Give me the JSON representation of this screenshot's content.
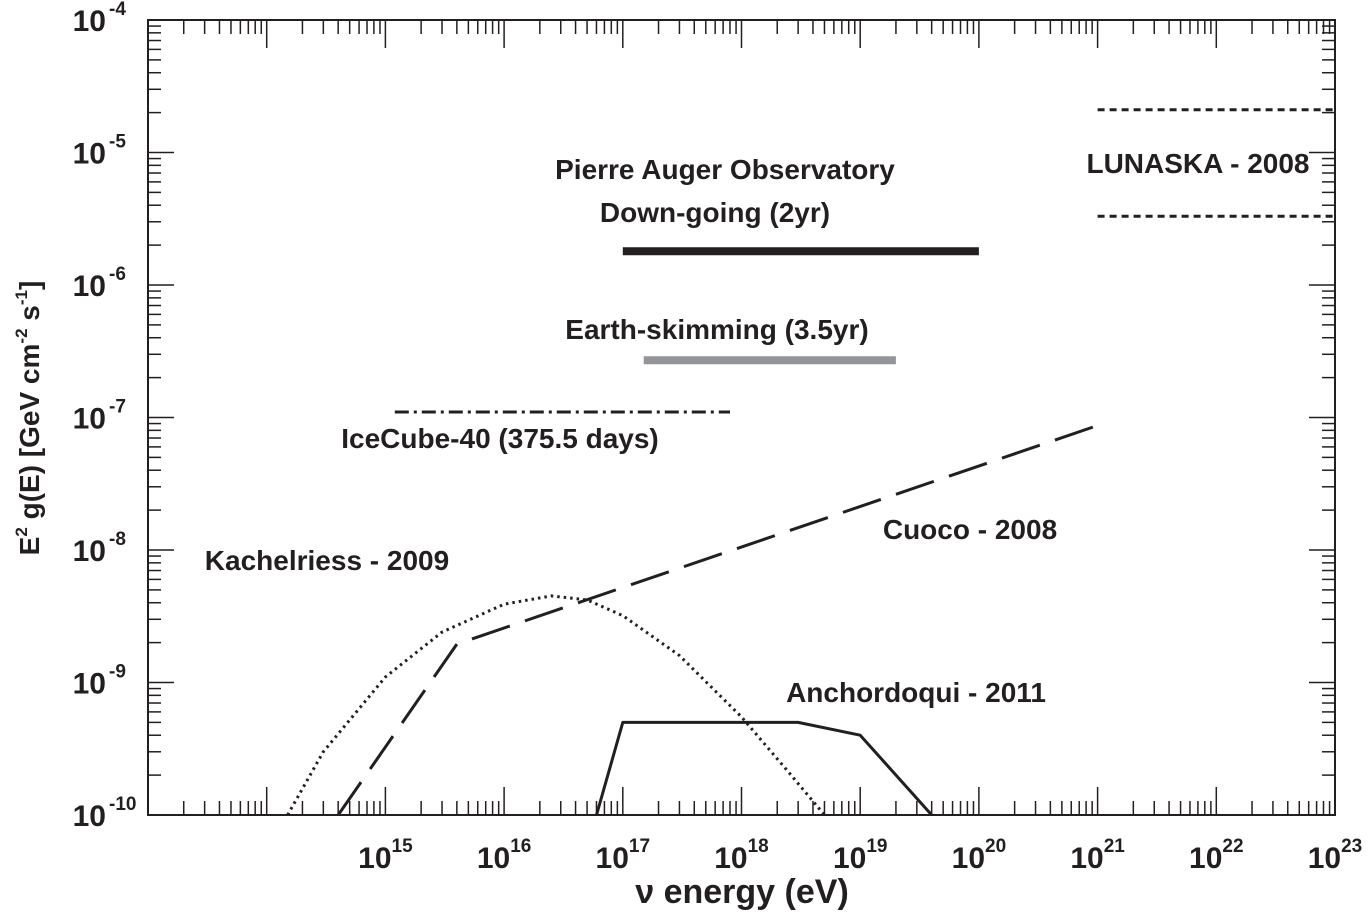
{
  "chart_data": {
    "type": "line",
    "xscale": "log",
    "yscale": "log",
    "xlim": [
      10000000000000.0,
      1e+23
    ],
    "ylim": [
      1e-10,
      0.0001
    ],
    "xlabel": "ν energy (eV)",
    "ylabel": {
      "base": "E",
      "base_sup": "2",
      "mid": " g(E) [GeV cm",
      "mid_sup": "-2",
      "tail": " s",
      "tail_sup": "-1",
      "end": "]"
    },
    "x_ticks": [
      {
        "exp": "15",
        "value": 1000000000000000.0
      },
      {
        "exp": "16",
        "value": 1e+16
      },
      {
        "exp": "17",
        "value": 1e+17
      },
      {
        "exp": "18",
        "value": 1e+18
      },
      {
        "exp": "19",
        "value": 1e+19
      },
      {
        "exp": "20",
        "value": 1e+20
      },
      {
        "exp": "21",
        "value": 1e+21
      },
      {
        "exp": "22",
        "value": 1e+22
      },
      {
        "exp": "23",
        "value": 1e+23
      }
    ],
    "y_ticks": [
      {
        "exp": "-10",
        "value": 1e-10
      },
      {
        "exp": "-9",
        "value": 1e-09
      },
      {
        "exp": "-8",
        "value": 1e-08
      },
      {
        "exp": "-7",
        "value": 1e-07
      },
      {
        "exp": "-6",
        "value": 1e-06
      },
      {
        "exp": "-5",
        "value": 1e-05
      },
      {
        "exp": "-4",
        "value": 0.0001
      }
    ],
    "tick_base": "10",
    "series": [
      {
        "key": "auger-down",
        "style": "solid-thick",
        "color": "#231f20",
        "points": [
          [
            1e+17,
            1.8e-06
          ],
          [
            1e+20,
            1.8e-06
          ]
        ],
        "label_lines": [
          "Pierre Auger Observatory",
          "Down-going (2yr)"
        ]
      },
      {
        "key": "auger-earth",
        "style": "solid-thick",
        "color": "#939598",
        "points": [
          [
            1.5e+17,
            2.7e-07
          ],
          [
            2e+19,
            2.7e-07
          ]
        ],
        "label_lines": [
          "Earth-skimming (3.5yr)"
        ]
      },
      {
        "key": "icecube",
        "style": "dashdot",
        "color": "#231f20",
        "points": [
          [
            1200000000000000.0,
            1.1e-07
          ],
          [
            8e+17,
            1.1e-07
          ]
        ],
        "label_lines": [
          "IceCube-40 (375.5 days)"
        ]
      },
      {
        "key": "lunaska-upper",
        "style": "dotted-short",
        "color": "#231f20",
        "points": [
          [
            1e+21,
            2.1e-05
          ],
          [
            1e+23,
            2.1e-05
          ]
        ],
        "label_lines": [
          "LUNASKA - 2008"
        ]
      },
      {
        "key": "lunaska-lower",
        "style": "dotted-short",
        "color": "#231f20",
        "points": [
          [
            1e+21,
            3.3e-06
          ],
          [
            1e+23,
            3.3e-06
          ]
        ],
        "label_lines": []
      },
      {
        "key": "cuoco",
        "style": "longdash",
        "color": "#231f20",
        "points": [
          [
            400000000000000.0,
            1e-10
          ],
          [
            4000000000000000.0,
            1.95e-09
          ],
          [
            1e+21,
            8.7e-08
          ]
        ],
        "label_lines": [
          "Cuoco - 2008"
        ]
      },
      {
        "key": "kachelriess",
        "style": "dotted",
        "color": "#231f20",
        "points": [
          [
            150000000000000.0,
            1e-10
          ],
          [
            300000000000000.0,
            3e-10
          ],
          [
            1000000000000000.0,
            1.1e-09
          ],
          [
            3000000000000000.0,
            2.4e-09
          ],
          [
            1e+16,
            3.9e-09
          ],
          [
            2.5e+16,
            4.5e-09
          ],
          [
            5e+16,
            4.2e-09
          ],
          [
            1e+17,
            3.2e-09
          ],
          [
            3e+17,
            1.6e-09
          ],
          [
            1e+18,
            5.5e-10
          ],
          [
            2.5e+18,
            2.1e-10
          ],
          [
            5e+18,
            1e-10
          ]
        ],
        "label_lines": [
          "Kachelriess - 2009"
        ]
      },
      {
        "key": "anchordoqui",
        "style": "solid",
        "color": "#231f20",
        "points": [
          [
            6e+16,
            1e-10
          ],
          [
            1e+17,
            5e-10
          ],
          [
            3e+18,
            5e-10
          ],
          [
            1e+19,
            4e-10
          ],
          [
            4e+19,
            1e-10
          ]
        ],
        "label_lines": [
          "Anchordoqui - 2011"
        ]
      }
    ]
  }
}
